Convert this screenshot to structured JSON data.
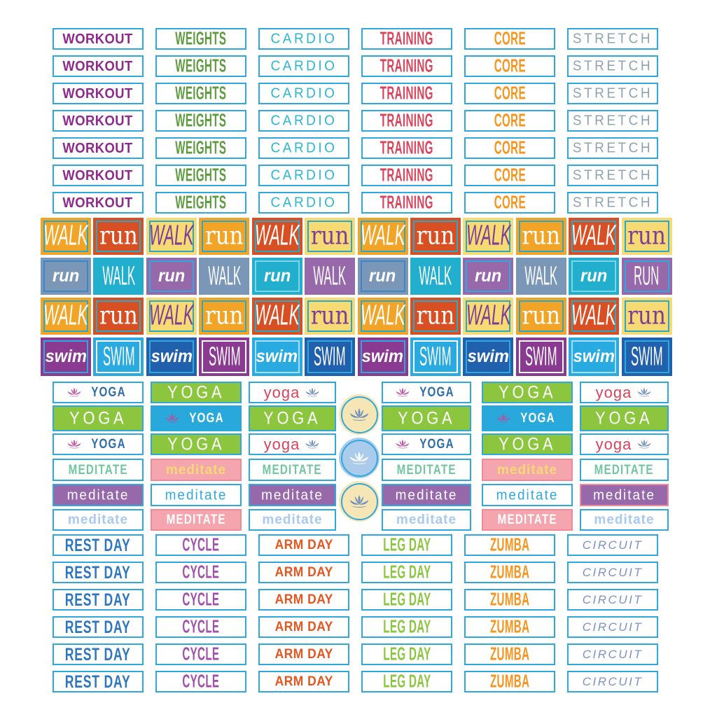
{
  "top_labels": {
    "rows": 7,
    "columns": [
      {
        "label": "WORKOUT",
        "color": "#8f2a8d",
        "font": "f-heavy"
      },
      {
        "label": "WEIGHTS",
        "color": "#5d9c3f",
        "font": "f-cond"
      },
      {
        "label": "CARDIO",
        "color": "#2cb6d4",
        "font": "f-thin"
      },
      {
        "label": "TRAINING",
        "color": "#d8445c",
        "font": "f-cond"
      },
      {
        "label": "CORE",
        "color": "#f7941e",
        "font": "f-cond"
      },
      {
        "label": "STRETCH",
        "color": "#8fa3b0",
        "font": "f-thin"
      }
    ],
    "box_border_color": "#2fa9dd"
  },
  "walk_run_grid": {
    "tile_types": {
      "walk_orange": {
        "text": "WALK",
        "bg": "#f1a425",
        "fg": "#ffffff",
        "frame": "#2aa9c6",
        "font": "f-script"
      },
      "run_red": {
        "text": "run",
        "bg": "#d94f24",
        "fg": "#ffffff",
        "frame": "#2aa9c6",
        "font": "f-slab"
      },
      "walk_yellow": {
        "text": "WALK",
        "bg": "#f6da74",
        "fg": "#7b3f98",
        "frame": "#2aa9c6",
        "font": "f-script"
      },
      "run_orange": {
        "text": "run",
        "bg": "#f1a425",
        "fg": "#ffffff",
        "frame": "#2aa9c6",
        "font": "f-slab"
      },
      "walk_red": {
        "text": "WALK",
        "bg": "#d94f24",
        "fg": "#ffffff",
        "frame": "#2aa9c6",
        "font": "f-script"
      },
      "run_yellow": {
        "text": "run",
        "bg": "#f6da74",
        "fg": "#7b3f98",
        "frame": "#2aa9c6",
        "font": "f-slab"
      },
      "run_slate": {
        "text": "run",
        "bg": "#7b97b8",
        "fg": "#ffffff",
        "frame": "#3d87c9",
        "font": "f-boldital"
      },
      "walk_teal": {
        "text": "WALK",
        "bg": "#22aecd",
        "fg": "#ffffff",
        "frame": null,
        "font": "f-tallcaps"
      },
      "run_purple": {
        "text": "run",
        "bg": "#9769aa",
        "fg": "#ffffff",
        "frame": "#2fa9dd",
        "font": "f-boldital"
      },
      "walk_slate": {
        "text": "WALK",
        "bg": "#7b97b8",
        "fg": "#ffffff",
        "frame": null,
        "font": "f-tallcaps"
      },
      "run_teal": {
        "text": "run",
        "bg": "#22aecd",
        "fg": "#ffffff",
        "frame": "#7fd4e8",
        "font": "f-boldital"
      },
      "walk_purple": {
        "text": "WALK",
        "bg": "#9769aa",
        "fg": "#ffffff",
        "frame": null,
        "font": "f-tallcaps"
      },
      "run_caps_purple": {
        "text": "RUN",
        "bg": "#9769aa",
        "fg": "#ffffff",
        "frame": "#2fa9dd",
        "font": "f-tallcaps"
      },
      "swim_bold_purple": {
        "text": "swim",
        "bg": "#8b3a91",
        "fg": "#ffffff",
        "frame": "#2fa9dd",
        "font": "f-boldital"
      },
      "swim_caps_cyan": {
        "text": "SWIM",
        "bg": "#29abe2",
        "fg": "#ffffff",
        "frame": "#ffffff",
        "font": "f-tallcaps"
      },
      "swim_bold_blue": {
        "text": "swim",
        "bg": "#2060ac",
        "fg": "#ffffff",
        "frame": "#2fa9dd",
        "font": "f-boldital"
      },
      "swim_caps_purple": {
        "text": "SWIM",
        "bg": "#8b3a91",
        "fg": "#ffffff",
        "frame": "#ffffff",
        "font": "f-tallcaps"
      },
      "swim_bold_cyan": {
        "text": "swim",
        "bg": "#29abe2",
        "fg": "#ffffff",
        "frame": "#a9ddf0",
        "font": "f-boldital"
      },
      "swim_caps_blue": {
        "text": "SWIM",
        "bg": "#2060ac",
        "fg": "#ffffff",
        "frame": "#2fa9dd",
        "font": "f-tallcaps"
      }
    },
    "rows": [
      [
        "walk_orange",
        "run_red",
        "walk_yellow",
        "run_orange",
        "walk_red",
        "run_yellow",
        "walk_orange",
        "run_red",
        "walk_yellow",
        "run_orange",
        "walk_red",
        "run_yellow"
      ],
      [
        "run_slate",
        "walk_teal",
        "run_purple",
        "walk_slate",
        "run_teal",
        "walk_purple",
        "run_slate",
        "walk_teal",
        "run_purple",
        "walk_slate",
        "run_teal",
        "run_caps_purple"
      ],
      [
        "walk_orange",
        "run_red",
        "walk_yellow",
        "run_orange",
        "walk_red",
        "run_yellow",
        "walk_orange",
        "run_red",
        "walk_yellow",
        "run_orange",
        "walk_red",
        "run_yellow"
      ],
      [
        "swim_bold_purple",
        "swim_caps_cyan",
        "swim_bold_blue",
        "swim_caps_purple",
        "swim_bold_cyan",
        "swim_caps_blue",
        "swim_bold_purple",
        "swim_caps_cyan",
        "swim_bold_blue",
        "swim_caps_purple",
        "swim_bold_cyan",
        "swim_caps_blue"
      ]
    ]
  },
  "yoga_meditate": {
    "tile_types": {
      "yoga_lotus_white": {
        "text": "YOGA",
        "bg": "#ffffff",
        "fg": "#2e6da8",
        "border": "#2fa9dd",
        "font": "f-hand",
        "lotus": "#bf54a2",
        "lotus_pos": "left"
      },
      "yoga_green": {
        "text": "YOGA",
        "bg": "#8cc63f",
        "fg": "#ffffff",
        "border": "#2fa9dd",
        "font": "f-thinwide"
      },
      "yoga_red_lotus_white": {
        "text": "yoga",
        "bg": "#ffffff",
        "fg": "#d8445c",
        "border": "#2fa9dd",
        "font": "f-lower",
        "lotus": "#7090bd",
        "lotus_pos": "right"
      },
      "yoga_cyan_lotus": {
        "text": "YOGA",
        "bg": "#29a8dc",
        "fg": "#ffffff",
        "border": null,
        "font": "f-hand",
        "lotus": "#b5519e",
        "lotus_pos": "left"
      },
      "meditate_mint_white": {
        "text": "MEDITATE",
        "bg": "#ffffff",
        "fg": "#72c6a0",
        "border": "#2fa9dd",
        "font": "f-hand"
      },
      "meditate_yellow_pink": {
        "text": "meditate",
        "bg": "#f4a5ad",
        "fg": "#f6da74",
        "border": "#ee8a99",
        "font": "f-boldlower"
      },
      "meditate_white_purple": {
        "text": "meditate",
        "bg": "#9769aa",
        "fg": "#ffffff",
        "border": "#2fa9dd",
        "font": "f-thinlower"
      },
      "meditate_cyan_white": {
        "text": "meditate",
        "bg": "#ffffff",
        "fg": "#2fa9dd",
        "border": "#2fa9dd",
        "font": "f-thinlower"
      },
      "meditate_white_purple_pink": {
        "text": "meditate",
        "bg": "#9769aa",
        "fg": "#ffffff",
        "border": "#ee8a99",
        "font": "f-thinlower"
      },
      "meditate_blue_white": {
        "text": "meditate",
        "bg": "#ffffff",
        "fg": "#a9c9ee",
        "border": "#2fa9dd",
        "font": "f-boldlower"
      },
      "meditate_white_pink": {
        "text": "MEDITATE",
        "bg": "#f4a5ad",
        "fg": "#ffffff",
        "border": "#ee8a99",
        "font": "f-hand"
      }
    },
    "rows": [
      [
        "yoga_lotus_white",
        "yoga_green",
        "yoga_red_lotus_white",
        "yoga_lotus_white",
        "yoga_green",
        "yoga_red_lotus_white"
      ],
      [
        "yoga_green",
        "yoga_cyan_lotus",
        "yoga_green",
        "yoga_green",
        "yoga_cyan_lotus",
        "yoga_green"
      ],
      [
        "yoga_lotus_white",
        "yoga_green",
        "yoga_red_lotus_white",
        "yoga_lotus_white",
        "yoga_green",
        "yoga_red_lotus_white"
      ],
      [
        "meditate_mint_white",
        "meditate_yellow_pink",
        "meditate_mint_white",
        "meditate_mint_white",
        "meditate_yellow_pink",
        "meditate_mint_white"
      ],
      [
        "meditate_white_purple",
        "meditate_cyan_white",
        "meditate_white_purple",
        "meditate_white_purple",
        "meditate_cyan_white",
        "meditate_white_purple_pink"
      ],
      [
        "meditate_blue_white",
        "meditate_white_pink",
        "meditate_blue_white",
        "meditate_blue_white",
        "meditate_white_pink",
        "meditate_blue_white"
      ]
    ],
    "circles": [
      {
        "bg": "#f6e5b5",
        "ring": "#2fa9dd",
        "lotus": "#7090bd"
      },
      {
        "bg": "#aacbec",
        "ring": "#2fa9dd",
        "lotus": "#ffffff"
      },
      {
        "bg": "#f6e5b5",
        "ring": "#2fa9dd",
        "lotus": "#7090bd"
      }
    ]
  },
  "bottom_labels": {
    "rows": 6,
    "columns": [
      {
        "label": "REST DAY",
        "color": "#2e77be",
        "font": "f-brush"
      },
      {
        "label": "CYCLE",
        "color": "#a151aa",
        "font": "f-cond"
      },
      {
        "label": "ARM DAY",
        "color": "#e4561f",
        "font": "f-heavy"
      },
      {
        "label": "LEG DAY",
        "color": "#8bc63f",
        "font": "f-cond"
      },
      {
        "label": "ZUMBA",
        "color": "#f7941e",
        "font": "f-cond"
      },
      {
        "label": "CIRCUIT",
        "color": "#7d90c4",
        "font": "f-italwide"
      }
    ],
    "box_border_color": "#2fa9dd"
  }
}
